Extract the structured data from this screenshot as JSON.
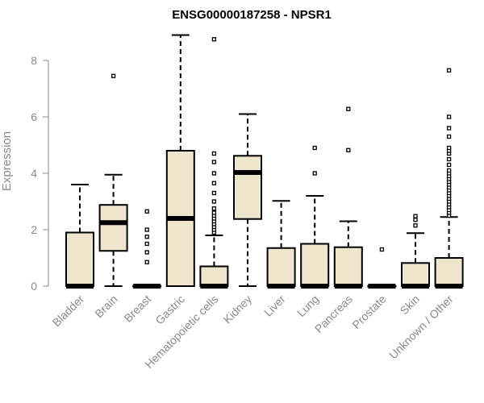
{
  "chart_data": {
    "type": "box",
    "title": "ENSG00000187258 - NPSR1",
    "xlabel": "",
    "ylabel": "Expression",
    "ylim": [
      0,
      9
    ],
    "yticks": [
      "0",
      "2",
      "4",
      "6",
      "8"
    ],
    "box_fill": "#ede6cc",
    "box_stroke": "#000000",
    "categories": [
      "Bladder",
      "Brain",
      "Breast",
      "Gastric",
      "Hematopoietic cells",
      "Kidney",
      "Liver",
      "Lung",
      "Pancreas",
      "Prostate",
      "Skin",
      "Unknown / Other"
    ],
    "boxes": [
      {
        "whisker_low": 0,
        "q1": 0,
        "median": 0,
        "q3": 1.9,
        "whisker_high": 3.6,
        "outliers": []
      },
      {
        "whisker_low": 0,
        "q1": 1.25,
        "median": 2.25,
        "q3": 2.88,
        "whisker_high": 3.95,
        "outliers": [
          7.45
        ]
      },
      {
        "whisker_low": 0,
        "q1": 0,
        "median": 0,
        "q3": 0,
        "whisker_high": 0,
        "outliers": [
          0.85,
          1.2,
          1.5,
          1.75,
          2.0,
          2.65
        ]
      },
      {
        "whisker_low": 0,
        "q1": 0,
        "median": 2.4,
        "q3": 4.8,
        "whisker_high": 8.9,
        "outliers": []
      },
      {
        "whisker_low": 0,
        "q1": 0,
        "median": 0,
        "q3": 0.7,
        "whisker_high": 1.8,
        "outliers": [
          1.9,
          2.0,
          2.1,
          2.2,
          2.3,
          2.4,
          2.5,
          2.6,
          2.75,
          3.0,
          3.3,
          3.65,
          4.0,
          4.4,
          4.7,
          8.75
        ]
      },
      {
        "whisker_low": 0,
        "q1": 2.38,
        "median": 4.03,
        "q3": 4.62,
        "whisker_high": 6.1,
        "outliers": []
      },
      {
        "whisker_low": 0,
        "q1": 0,
        "median": 0,
        "q3": 1.35,
        "whisker_high": 3.02,
        "outliers": []
      },
      {
        "whisker_low": 0,
        "q1": 0,
        "median": 0,
        "q3": 1.5,
        "whisker_high": 3.2,
        "outliers": [
          4.0,
          4.9
        ]
      },
      {
        "whisker_low": 0,
        "q1": 0,
        "median": 0,
        "q3": 1.38,
        "whisker_high": 2.3,
        "outliers": [
          4.82,
          6.28
        ]
      },
      {
        "whisker_low": 0,
        "q1": 0,
        "median": 0,
        "q3": 0,
        "whisker_high": 0,
        "outliers": [
          1.3
        ]
      },
      {
        "whisker_low": 0,
        "q1": 0,
        "median": 0,
        "q3": 0.82,
        "whisker_high": 1.88,
        "outliers": [
          2.15,
          2.35,
          2.48
        ]
      },
      {
        "whisker_low": 0,
        "q1": 0,
        "median": 0,
        "q3": 1.0,
        "whisker_high": 2.45,
        "outliers": [
          2.5,
          2.6,
          2.7,
          2.8,
          2.9,
          3.0,
          3.1,
          3.2,
          3.3,
          3.4,
          3.5,
          3.6,
          3.7,
          3.8,
          3.9,
          4.0,
          4.1,
          4.3,
          4.5,
          4.7,
          4.8,
          4.9,
          5.3,
          5.6,
          6.0,
          7.65
        ]
      }
    ]
  }
}
